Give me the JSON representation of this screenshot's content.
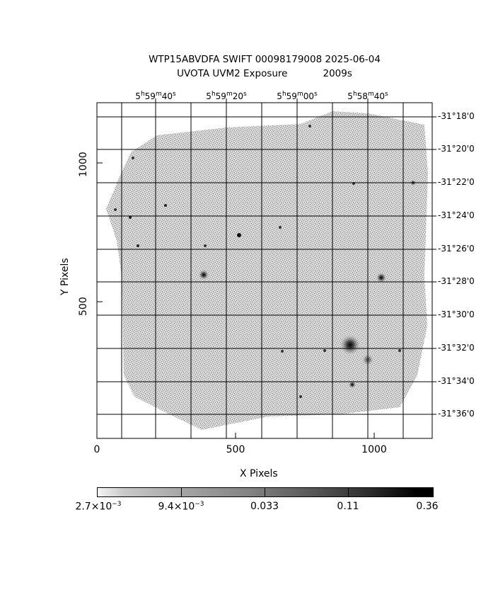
{
  "header": {
    "line1": "WTP15ABVDFA SWIFT 00098179008 2025-06-04",
    "line2_left": "UVOTA UVM2 Exposure",
    "line2_right": "2009s"
  },
  "axes": {
    "xlabel": "X Pixels",
    "ylabel": "Y Pixels",
    "x_ticks": [
      "0",
      "500",
      "1000"
    ],
    "y_ticks": [
      "500",
      "1000"
    ],
    "ra_ticks": [
      {
        "h": "5",
        "m": "59",
        "s": "40"
      },
      {
        "h": "5",
        "m": "59",
        "s": "20"
      },
      {
        "h": "5",
        "m": "59",
        "s": "00"
      },
      {
        "h": "5",
        "m": "58",
        "s": "40"
      }
    ],
    "dec_ticks": [
      "-31°18'0",
      "-31°20'0",
      "-31°22'0",
      "-31°24'0",
      "-31°26'0",
      "-31°28'0",
      "-31°30'0",
      "-31°32'0",
      "-31°34'0",
      "-31°36'0"
    ]
  },
  "colorbar": {
    "labels": [
      {
        "mantissa": "2.7×10",
        "exp": "−3"
      },
      {
        "mantissa": "9.4×10",
        "exp": "−3"
      },
      {
        "mantissa": "0.033",
        "exp": ""
      },
      {
        "mantissa": "0.11",
        "exp": ""
      },
      {
        "mantissa": "0.36",
        "exp": ""
      }
    ]
  }
}
